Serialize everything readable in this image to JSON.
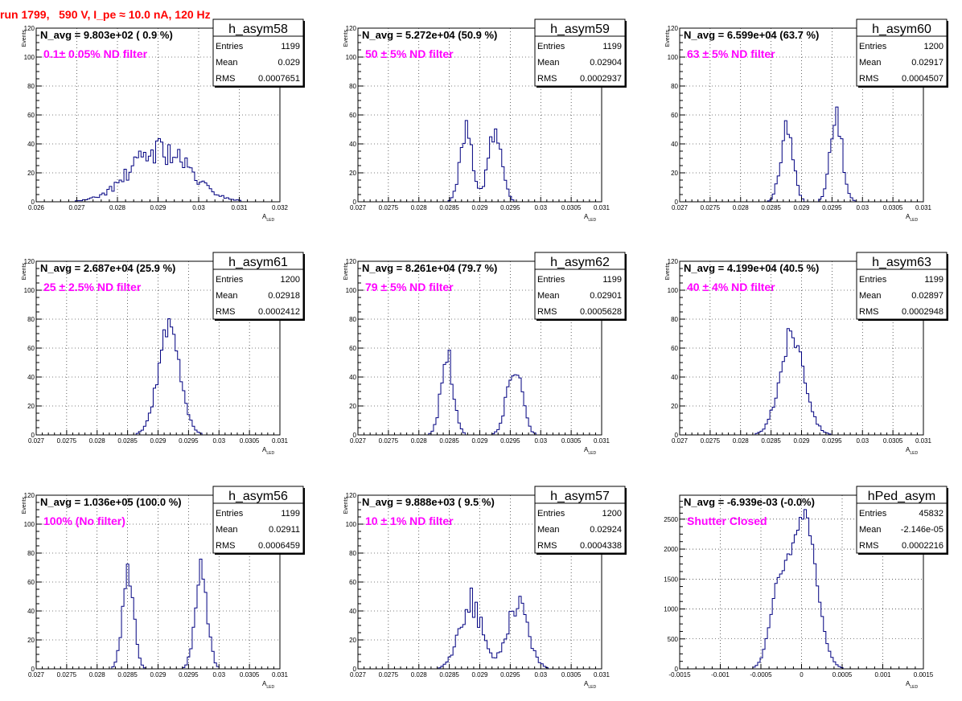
{
  "run_title": "run 1799,   590 V, I_pe ≈ 10.0 nA, 120 Hz",
  "stats_labels": {
    "entries": "Entries",
    "mean": "Mean",
    "rms": "RMS"
  },
  "chart_data": [
    {
      "type": "histogram",
      "name": "h_asym58",
      "title": "N_avg = 9.803e+02 ( 0.9 %)",
      "filter_label": "0.1± 0.05% ND filter",
      "xlabel": "A",
      "xlabel_sub": "LED",
      "ylabel": "Events",
      "xlim": [
        0.026,
        0.032
      ],
      "ylim": [
        0,
        120
      ],
      "xticks": [
        "0.026",
        "0.027",
        "0.028",
        "0.029",
        "0.03",
        "0.031",
        "0.032"
      ],
      "yticks": [
        "0",
        "20",
        "40",
        "60",
        "80",
        "100",
        "120"
      ],
      "stats": {
        "entries": "1199",
        "mean": "0.029",
        "rms": "0.0007651"
      },
      "shape": {
        "peaks": [
          [
            0.02905,
            0.00072,
            36
          ]
        ],
        "noise": 0.28,
        "seed": 58
      }
    },
    {
      "type": "histogram",
      "name": "h_asym59",
      "title": "N_avg = 5.272e+04 (50.9 %)",
      "filter_label": "50 ± 5% ND filter",
      "xlabel": "A",
      "xlabel_sub": "LED",
      "ylabel": "Events",
      "xlim": [
        0.027,
        0.031
      ],
      "ylim": [
        0,
        120
      ],
      "xticks": [
        "0.027",
        "0.0275",
        "0.028",
        "0.0285",
        "0.029",
        "0.0295",
        "0.03",
        "0.0305",
        "0.031"
      ],
      "yticks": [
        "0",
        "20",
        "40",
        "60",
        "80",
        "100",
        "120"
      ],
      "stats": {
        "entries": "1199",
        "mean": "0.02904",
        "rms": "0.0002937"
      },
      "shape": {
        "peaks": [
          [
            0.02878,
            0.0001,
            50
          ],
          [
            0.02925,
            0.00011,
            50
          ]
        ],
        "noise": 0.15,
        "seed": 59
      }
    },
    {
      "type": "histogram",
      "name": "h_asym60",
      "title": "N_avg = 6.599e+04 (63.7 %)",
      "filter_label": "63 ± 5% ND filter",
      "xlabel": "A",
      "xlabel_sub": "LED",
      "ylabel": "Events",
      "xlim": [
        0.027,
        0.031
      ],
      "ylim": [
        0,
        120
      ],
      "xticks": [
        "0.027",
        "0.0275",
        "0.028",
        "0.0285",
        "0.029",
        "0.0295",
        "0.03",
        "0.0305",
        "0.031"
      ],
      "yticks": [
        "0",
        "20",
        "40",
        "60",
        "80",
        "100",
        "120"
      ],
      "stats": {
        "entries": "1200",
        "mean": "0.02917",
        "rms": "0.0004507"
      },
      "shape": {
        "peaks": [
          [
            0.02876,
            0.0001,
            55
          ],
          [
            0.02957,
            0.0001,
            58
          ]
        ],
        "noise": 0.2,
        "seed": 60
      }
    },
    {
      "type": "histogram",
      "name": "h_asym61",
      "title": "N_avg = 2.687e+04 (25.9 %)",
      "filter_label": "25 ± 2.5% ND filter",
      "xlabel": "A",
      "xlabel_sub": "LED",
      "ylabel": "Events",
      "xlim": [
        0.027,
        0.031
      ],
      "ylim": [
        0,
        120
      ],
      "xticks": [
        "0.027",
        "0.0275",
        "0.028",
        "0.0285",
        "0.029",
        "0.0295",
        "0.03",
        "0.0305",
        "0.031"
      ],
      "yticks": [
        "0",
        "20",
        "40",
        "60",
        "80",
        "100",
        "120"
      ],
      "stats": {
        "entries": "1200",
        "mean": "0.02918",
        "rms": "0.0002412"
      },
      "shape": {
        "peaks": [
          [
            0.02918,
            0.00018,
            72
          ]
        ],
        "noise": 0.12,
        "seed": 61
      }
    },
    {
      "type": "histogram",
      "name": "h_asym62",
      "title": "N_avg = 8.261e+04 (79.7 %)",
      "filter_label": "79 ± 5% ND filter",
      "xlabel": "A",
      "xlabel_sub": "LED",
      "ylabel": "Events",
      "xlim": [
        0.027,
        0.031
      ],
      "ylim": [
        0,
        120
      ],
      "xticks": [
        "0.027",
        "0.0275",
        "0.028",
        "0.0285",
        "0.029",
        "0.0295",
        "0.03",
        "0.0305",
        "0.031"
      ],
      "yticks": [
        "0",
        "20",
        "40",
        "60",
        "80",
        "100",
        "120"
      ],
      "stats": {
        "entries": "1199",
        "mean": "0.02901",
        "rms": "0.0005628"
      },
      "shape": {
        "peaks": [
          [
            0.02847,
            0.0001,
            55
          ],
          [
            0.02957,
            0.00012,
            52
          ]
        ],
        "noise": 0.2,
        "seed": 62
      }
    },
    {
      "type": "histogram",
      "name": "h_asym63",
      "title": "N_avg = 4.199e+04 (40.5 %)",
      "filter_label": "40 ± 4% ND filter",
      "xlabel": "A",
      "xlabel_sub": "LED",
      "ylabel": "Events",
      "xlim": [
        0.027,
        0.031
      ],
      "ylim": [
        0,
        120
      ],
      "xticks": [
        "0.027",
        "0.0275",
        "0.028",
        "0.0285",
        "0.029",
        "0.0295",
        "0.03",
        "0.0305",
        "0.031"
      ],
      "yticks": [
        "0",
        "20",
        "40",
        "60",
        "80",
        "100",
        "120"
      ],
      "stats": {
        "entries": "1199",
        "mean": "0.02897",
        "rms": "0.0002948"
      },
      "shape": {
        "peaks": [
          [
            0.02885,
            0.0002,
            70
          ]
        ],
        "noise": 0.14,
        "seed": 63
      }
    },
    {
      "type": "histogram",
      "name": "h_asym56",
      "title": "N_avg = 1.036e+05 (100.0 %)",
      "filter_label": "100% (No filter)",
      "xlabel": "A",
      "xlabel_sub": "LED",
      "ylabel": "Events",
      "xlim": [
        0.027,
        0.031
      ],
      "ylim": [
        0,
        120
      ],
      "xticks": [
        "0.027",
        "0.0275",
        "0.028",
        "0.0285",
        "0.029",
        "0.0295",
        "0.03",
        "0.0305",
        "0.031"
      ],
      "yticks": [
        "0",
        "20",
        "40",
        "60",
        "80",
        "100",
        "120"
      ],
      "stats": {
        "entries": "1199",
        "mean": "0.02911",
        "rms": "0.0006459"
      },
      "shape": {
        "peaks": [
          [
            0.02851,
            9e-05,
            68
          ],
          [
            0.02971,
            0.0001,
            67
          ]
        ],
        "noise": 0.15,
        "seed": 56
      }
    },
    {
      "type": "histogram",
      "name": "h_asym57",
      "title": "N_avg = 9.888e+03 ( 9.5 %)",
      "filter_label": "10 ± 1% ND filter",
      "xlabel": "A",
      "xlabel_sub": "LED",
      "ylabel": "Events",
      "xlim": [
        0.027,
        0.031
      ],
      "ylim": [
        0,
        120
      ],
      "xticks": [
        "0.027",
        "0.0275",
        "0.028",
        "0.0285",
        "0.029",
        "0.0295",
        "0.03",
        "0.0305",
        "0.031"
      ],
      "yticks": [
        "0",
        "20",
        "40",
        "60",
        "80",
        "100",
        "120"
      ],
      "stats": {
        "entries": "1200",
        "mean": "0.02924",
        "rms": "0.0004338"
      },
      "shape": {
        "peaks": [
          [
            0.02885,
            0.00018,
            46
          ],
          [
            0.02962,
            0.00017,
            46
          ]
        ],
        "noise": 0.22,
        "seed": 57
      }
    },
    {
      "type": "histogram",
      "name": "hPed_asym",
      "title": "N_avg = -6.939e-03 (-0.0%)",
      "filter_label": "Shutter Closed",
      "xlabel": "A",
      "xlabel_sub": "LED",
      "ylabel": "",
      "xlim": [
        -0.0015,
        0.0015
      ],
      "ylim": [
        0,
        2900
      ],
      "xticks": [
        "-0.0015",
        "-0.001",
        "-0.0005",
        "0",
        "0.0005",
        "0.001",
        "0.0015"
      ],
      "yticks": [
        "0",
        "500",
        "1000",
        "1500",
        "2000",
        "2500"
      ],
      "stats": {
        "entries": "45832",
        "mean": "-2.146e-05",
        "rms": "0.0002216"
      },
      "shape": {
        "peaks": [
          [
            -0.00028,
            0.00011,
            1250
          ],
          [
            3e-05,
            0.00015,
            2600
          ]
        ],
        "noise": 0.05,
        "seed": 99
      }
    }
  ]
}
